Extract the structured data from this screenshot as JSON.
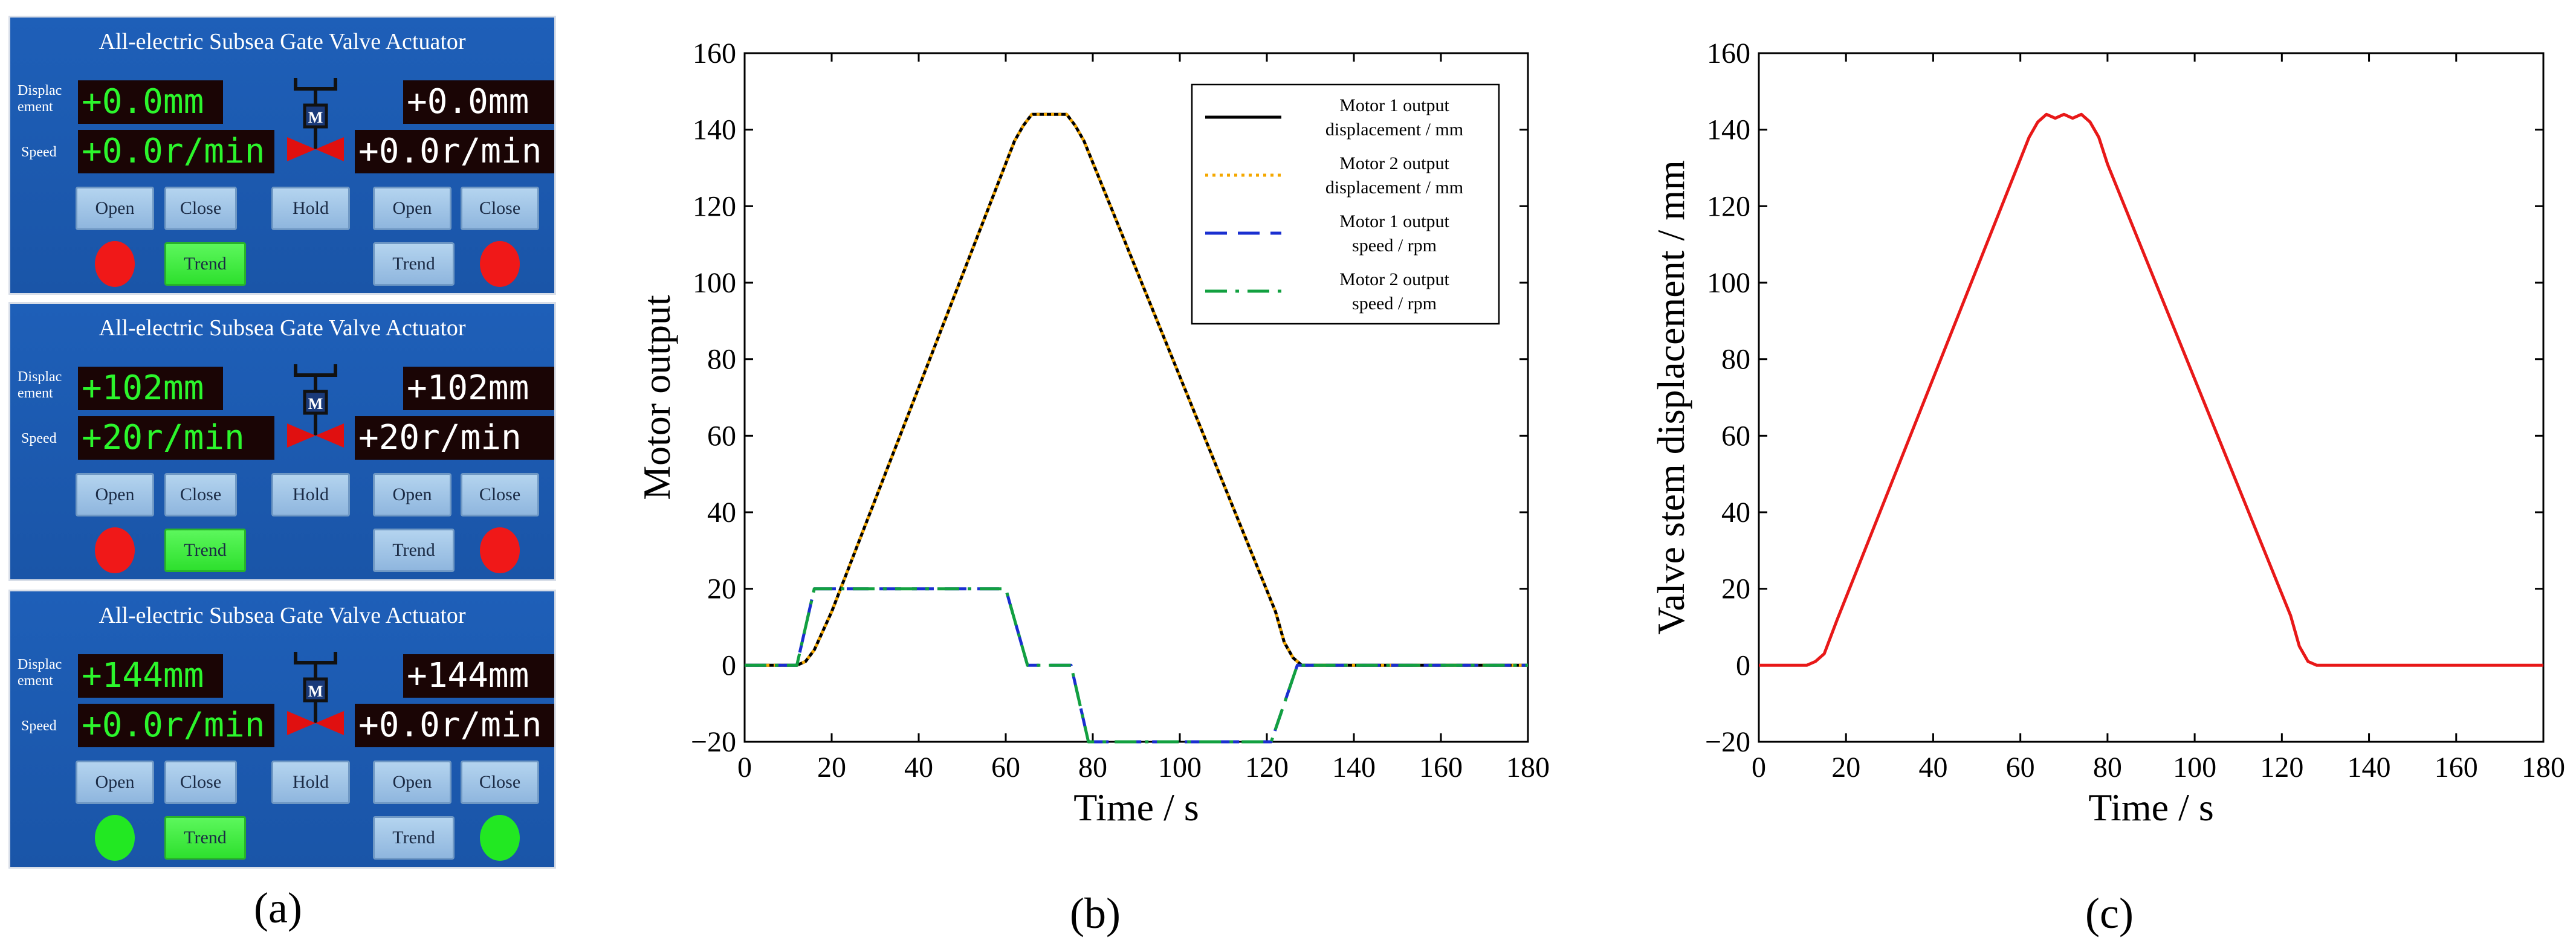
{
  "panel_a": {
    "caption": "(a)",
    "panels": [
      {
        "title": "All-electric Subsea Gate Valve Actuator",
        "disp_label": "Displac ement",
        "speed_label": "Speed",
        "disp_left": "+0.0mm",
        "disp_right": "+0.0mm",
        "speed_left": "+0.0r/min",
        "speed_right": "+0.0r/min",
        "buttons": {
          "open_left": "Open",
          "close_left": "Close",
          "hold": "Hold",
          "open_right": "Open",
          "close_right": "Close",
          "trend_left": "Trend",
          "trend_right": "Trend"
        },
        "motor_label": "M",
        "lamp_color": "#f01818"
      },
      {
        "title": "All-electric Subsea Gate Valve Actuator",
        "disp_label": "Displac ement",
        "speed_label": "Speed",
        "disp_left": "+102mm",
        "disp_right": "+102mm",
        "speed_left": "+20r/min",
        "speed_right": "+20r/min",
        "buttons": {
          "open_left": "Open",
          "close_left": "Close",
          "hold": "Hold",
          "open_right": "Open",
          "close_right": "Close",
          "trend_left": "Trend",
          "trend_right": "Trend"
        },
        "motor_label": "M",
        "lamp_color": "#f01818"
      },
      {
        "title": "All-electric Subsea Gate Valve Actuator",
        "disp_label": "Displac ement",
        "speed_label": "Speed",
        "disp_left": "+144mm",
        "disp_right": "+144mm",
        "speed_left": "+0.0r/min",
        "speed_right": "+0.0r/min",
        "buttons": {
          "open_left": "Open",
          "close_left": "Close",
          "hold": "Hold",
          "open_right": "Open",
          "close_right": "Close",
          "trend_left": "Trend",
          "trend_right": "Trend"
        },
        "motor_label": "M",
        "lamp_color": "#22e822"
      }
    ]
  },
  "chart_data": [
    {
      "type": "line",
      "caption": "(b)",
      "xlabel": "Time / s",
      "ylabel": "Motor output",
      "xlim": [
        0,
        180
      ],
      "ylim": [
        -20,
        160
      ],
      "xticks": [
        0,
        20,
        40,
        60,
        80,
        100,
        120,
        140,
        160,
        180
      ],
      "yticks": [
        -20,
        0,
        20,
        40,
        60,
        80,
        100,
        120,
        140,
        160
      ],
      "legend_position": "top-right",
      "series": [
        {
          "name": "Motor 1 output displacement / mm",
          "legend_lines": [
            "Motor 1 output",
            "displacement / mm"
          ],
          "color": "#000000",
          "style": "solid",
          "x": [
            0,
            12,
            14,
            16,
            20,
            62,
            64,
            66,
            74,
            76,
            78,
            122,
            124,
            126,
            128,
            180
          ],
          "y": [
            0,
            0,
            1,
            4,
            14,
            137,
            141,
            144,
            144,
            141,
            137,
            14,
            6,
            2,
            0,
            0
          ]
        },
        {
          "name": "Motor 2 output displacement / mm",
          "legend_lines": [
            "Motor 2 output",
            "displacement / mm"
          ],
          "color": "#f5a800",
          "style": "dotted",
          "x": [
            0,
            12,
            14,
            16,
            20,
            62,
            64,
            66,
            74,
            76,
            78,
            122,
            124,
            126,
            128,
            180
          ],
          "y": [
            0,
            0,
            1,
            4,
            14,
            137,
            141,
            144,
            144,
            141,
            137,
            14,
            6,
            2,
            0,
            0
          ]
        },
        {
          "name": "Motor 1 output speed / rpm",
          "legend_lines": [
            "Motor 1 output",
            "speed / rpm"
          ],
          "color": "#1a2fd0",
          "style": "dashed",
          "x": [
            0,
            12,
            16,
            60,
            65,
            75,
            79,
            121,
            127,
            180
          ],
          "y": [
            0,
            0,
            20,
            20,
            0,
            0,
            -20,
            -20,
            0,
            0
          ]
        },
        {
          "name": "Motor 2 output speed / rpm",
          "legend_lines": [
            "Motor 2 output",
            "speed / rpm"
          ],
          "color": "#12a040",
          "style": "dashdot",
          "x": [
            0,
            12,
            16,
            60,
            65,
            75,
            79,
            121,
            127,
            180
          ],
          "y": [
            0,
            0,
            20,
            20,
            0,
            0,
            -20,
            -20,
            0,
            0
          ]
        }
      ]
    },
    {
      "type": "line",
      "caption": "(c)",
      "xlabel": "Time / s",
      "ylabel": "Valve stem displacement / mm",
      "xlim": [
        0,
        180
      ],
      "ylim": [
        -20,
        160
      ],
      "xticks": [
        0,
        20,
        40,
        60,
        80,
        100,
        120,
        140,
        160,
        180
      ],
      "yticks": [
        -20,
        0,
        20,
        40,
        60,
        80,
        100,
        120,
        140,
        160
      ],
      "series": [
        {
          "name": "Valve stem displacement",
          "color": "#e81818",
          "style": "solid",
          "x": [
            0,
            11,
            13,
            15,
            18,
            62,
            64,
            66,
            68,
            70,
            72,
            74,
            76,
            78,
            80,
            122,
            124,
            126,
            128,
            180
          ],
          "y": [
            0,
            0,
            1,
            3,
            12,
            138,
            142,
            144,
            143,
            144,
            143,
            144,
            142,
            138,
            131,
            13,
            5,
            1,
            0,
            0
          ]
        }
      ]
    }
  ]
}
